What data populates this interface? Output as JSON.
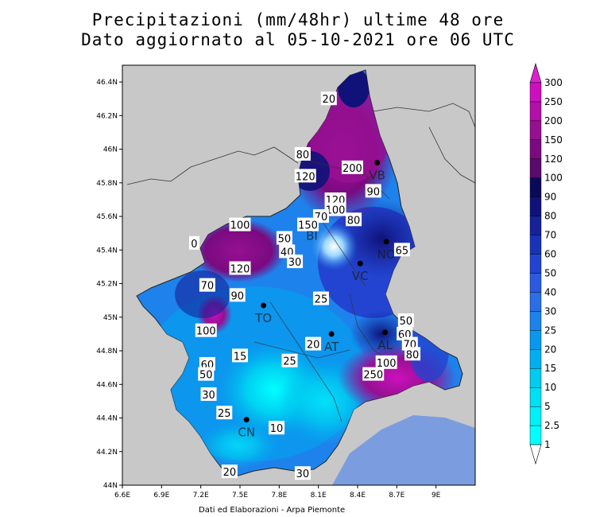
{
  "title_line1": "Precipitazioni (mm/48hr) ultime 48 ore",
  "title_line2": "Dato aggiornato al 05-10-2021 ore 06 UTC",
  "footer": "Dati ed Elaborazioni - Arpa Piemonte",
  "colors": {
    "background_outside": "#c8c8c8",
    "sea": "#7b9de0",
    "border_line": "#333333"
  },
  "map_extent": {
    "lon_min": 6.6,
    "lon_max": 9.3,
    "lat_min": 44.0,
    "lat_max": 46.5
  },
  "lon_ticks": [
    "6.6E",
    "6.9E",
    "7.2E",
    "7.5E",
    "7.8E",
    "8.1E",
    "8.4E",
    "8.7E",
    "9E"
  ],
  "lat_ticks": [
    "44N",
    "44.2N",
    "44.4N",
    "44.6N",
    "44.8N",
    "45N",
    "45.2N",
    "45.4N",
    "45.6N",
    "45.8N",
    "46N",
    "46.2N",
    "46.4N"
  ],
  "legend": {
    "levels": [
      "1",
      "2.5",
      "5",
      "10",
      "15",
      "20",
      "25",
      "30",
      "40",
      "50",
      "60",
      "70",
      "80",
      "90",
      "100",
      "120",
      "150",
      "200",
      "250",
      "300"
    ],
    "colors": [
      "#00ffff",
      "#00f0f8",
      "#00e0f4",
      "#00ccf0",
      "#00b0ee",
      "#0a98ee",
      "#1e82ec",
      "#2a6ee8",
      "#2a5ae0",
      "#2244d0",
      "#1a32b8",
      "#16229a",
      "#10127a",
      "#0a0a5a",
      "#5a0a6a",
      "#7a0a80",
      "#961092",
      "#b210a8",
      "#cc10bc",
      "#e020d0"
    ]
  },
  "cities": [
    {
      "label": "TO",
      "lon": 7.68,
      "lat": 45.07
    },
    {
      "label": "CN",
      "lon": 7.55,
      "lat": 44.39
    },
    {
      "label": "AT",
      "lon": 8.2,
      "lat": 44.9
    },
    {
      "label": "AL",
      "lon": 8.61,
      "lat": 44.91
    },
    {
      "label": "VC",
      "lon": 8.42,
      "lat": 45.32
    },
    {
      "label": "NO",
      "lon": 8.62,
      "lat": 45.45
    },
    {
      "label": "BI",
      "lon": 8.05,
      "lat": 45.56
    },
    {
      "label": "VB",
      "lon": 8.55,
      "lat": 45.92
    }
  ],
  "contour_labels": [
    {
      "text": "20",
      "lon": 8.18,
      "lat": 46.3
    },
    {
      "text": "80",
      "lon": 7.98,
      "lat": 45.97
    },
    {
      "text": "120",
      "lon": 8.0,
      "lat": 45.84
    },
    {
      "text": "200",
      "lon": 8.36,
      "lat": 45.89
    },
    {
      "text": "120",
      "lon": 8.23,
      "lat": 45.7
    },
    {
      "text": "90",
      "lon": 8.52,
      "lat": 45.75
    },
    {
      "text": "100",
      "lon": 8.23,
      "lat": 45.64
    },
    {
      "text": "80",
      "lon": 8.37,
      "lat": 45.58
    },
    {
      "text": "70",
      "lon": 8.12,
      "lat": 45.6
    },
    {
      "text": "150",
      "lon": 8.02,
      "lat": 45.55
    },
    {
      "text": "100",
      "lon": 7.5,
      "lat": 45.55
    },
    {
      "text": "50",
      "lon": 7.84,
      "lat": 45.47
    },
    {
      "text": "40",
      "lon": 7.86,
      "lat": 45.39
    },
    {
      "text": "30",
      "lon": 7.92,
      "lat": 45.33
    },
    {
      "text": "120",
      "lon": 7.5,
      "lat": 45.29
    },
    {
      "text": "70",
      "lon": 7.25,
      "lat": 45.19
    },
    {
      "text": "90",
      "lon": 7.48,
      "lat": 45.13
    },
    {
      "text": "25",
      "lon": 8.12,
      "lat": 45.11
    },
    {
      "text": "100",
      "lon": 7.24,
      "lat": 44.92
    },
    {
      "text": "15",
      "lon": 7.5,
      "lat": 44.77
    },
    {
      "text": "60",
      "lon": 7.25,
      "lat": 44.72
    },
    {
      "text": "50",
      "lon": 7.24,
      "lat": 44.66
    },
    {
      "text": "20",
      "lon": 8.06,
      "lat": 44.84
    },
    {
      "text": "25",
      "lon": 7.88,
      "lat": 44.74
    },
    {
      "text": "30",
      "lon": 7.26,
      "lat": 44.54
    },
    {
      "text": "250",
      "lon": 8.52,
      "lat": 44.66
    },
    {
      "text": "100",
      "lon": 8.62,
      "lat": 44.73
    },
    {
      "text": "50",
      "lon": 8.77,
      "lat": 44.98
    },
    {
      "text": "60",
      "lon": 8.76,
      "lat": 44.9
    },
    {
      "text": "70",
      "lon": 8.8,
      "lat": 44.84
    },
    {
      "text": "80",
      "lon": 8.82,
      "lat": 44.78
    },
    {
      "text": "25",
      "lon": 7.38,
      "lat": 44.43
    },
    {
      "text": "10",
      "lon": 7.78,
      "lat": 44.34
    },
    {
      "text": "20",
      "lon": 7.42,
      "lat": 44.08
    },
    {
      "text": "30",
      "lon": 7.98,
      "lat": 44.07
    },
    {
      "text": "65",
      "lon": 8.74,
      "lat": 45.4
    },
    {
      "text": "0",
      "lon": 7.15,
      "lat": 45.44
    }
  ]
}
